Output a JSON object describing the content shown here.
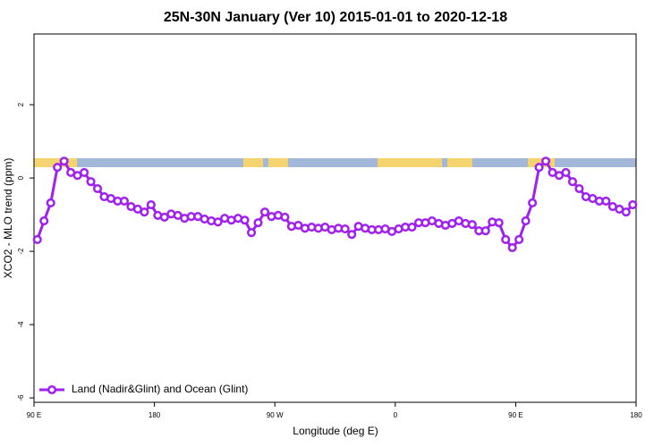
{
  "chart_data": {
    "type": "line",
    "title": "25N-30N January (Ver 10)   2015-01-01 to 2020-12-18",
    "x_label": "Longitude (deg E)",
    "y_label": "XCO2 - MLO trend (ppm)",
    "xlim": [
      90,
      540
    ],
    "ylim": [
      -6.12,
      3.93
    ],
    "xticks": [
      {
        "value": 90,
        "label": "90 E"
      },
      {
        "value": 180,
        "label": "180"
      },
      {
        "value": 270,
        "label": "90 W"
      },
      {
        "value": 360,
        "label": "0"
      },
      {
        "value": 450,
        "label": "90 E"
      },
      {
        "value": 540,
        "label": "180"
      }
    ],
    "yticks": [
      -6,
      -4,
      -2,
      0,
      2
    ],
    "legend": "bottomleft",
    "x": [
      92.5,
      97.5,
      102.5,
      107.5,
      112.5,
      117.5,
      122.5,
      127.5,
      132.5,
      137.5,
      142.5,
      147.5,
      152.5,
      157.5,
      162.5,
      167.5,
      172.5,
      177.5,
      182.5,
      187.5,
      192.5,
      197.5,
      202.5,
      207.5,
      212.5,
      217.5,
      222.5,
      227.5,
      232.5,
      237.5,
      242.5,
      247.5,
      252.5,
      257.5,
      262.5,
      267.5,
      272.5,
      277.5,
      282.5,
      287.5,
      292.5,
      297.5,
      302.5,
      307.5,
      312.5,
      317.5,
      322.5,
      327.5,
      332.5,
      337.5,
      342.5,
      347.5,
      352.5,
      357.5,
      362.5,
      367.5,
      372.5,
      377.5,
      382.5,
      387.5,
      392.5,
      397.5,
      402.5,
      407.5,
      412.5,
      417.5,
      422.5,
      427.5,
      432.5,
      437.5,
      442.5,
      447.5,
      452.5,
      457.5,
      462.5,
      467.5,
      472.5,
      477.5,
      482.5,
      487.5,
      492.5,
      497.5,
      502.5,
      507.5,
      512.5,
      517.5,
      522.5,
      527.5,
      532.5,
      537.5
    ],
    "series": [
      {
        "name": "Land (Nadir&Glint) and Ocean (Glint)",
        "color": "#a020f0",
        "values": [
          -1.68,
          -1.17,
          -0.68,
          0.29,
          0.46,
          0.15,
          0.07,
          0.15,
          -0.1,
          -0.29,
          -0.51,
          -0.56,
          -0.63,
          -0.63,
          -0.78,
          -0.85,
          -0.93,
          -0.73,
          -1.02,
          -1.07,
          -0.98,
          -1.02,
          -1.1,
          -1.05,
          -1.05,
          -1.12,
          -1.17,
          -1.2,
          -1.1,
          -1.15,
          -1.1,
          -1.15,
          -1.49,
          -1.22,
          -0.93,
          -1.05,
          -1.02,
          -1.07,
          -1.32,
          -1.29,
          -1.37,
          -1.34,
          -1.37,
          -1.34,
          -1.41,
          -1.37,
          -1.39,
          -1.54,
          -1.32,
          -1.37,
          -1.41,
          -1.41,
          -1.39,
          -1.46,
          -1.39,
          -1.34,
          -1.34,
          -1.22,
          -1.22,
          -1.17,
          -1.24,
          -1.29,
          -1.24,
          -1.17,
          -1.24,
          -1.27,
          -1.44,
          -1.44,
          -1.2,
          -1.22,
          -1.68,
          -1.9,
          -1.68,
          -1.17,
          -0.68,
          0.29,
          0.46,
          0.15,
          0.07,
          0.15,
          -0.1,
          -0.29,
          -0.51,
          -0.56,
          -0.63,
          -0.63,
          -0.78,
          -0.85,
          -0.93,
          -0.73
        ]
      }
    ]
  }
}
